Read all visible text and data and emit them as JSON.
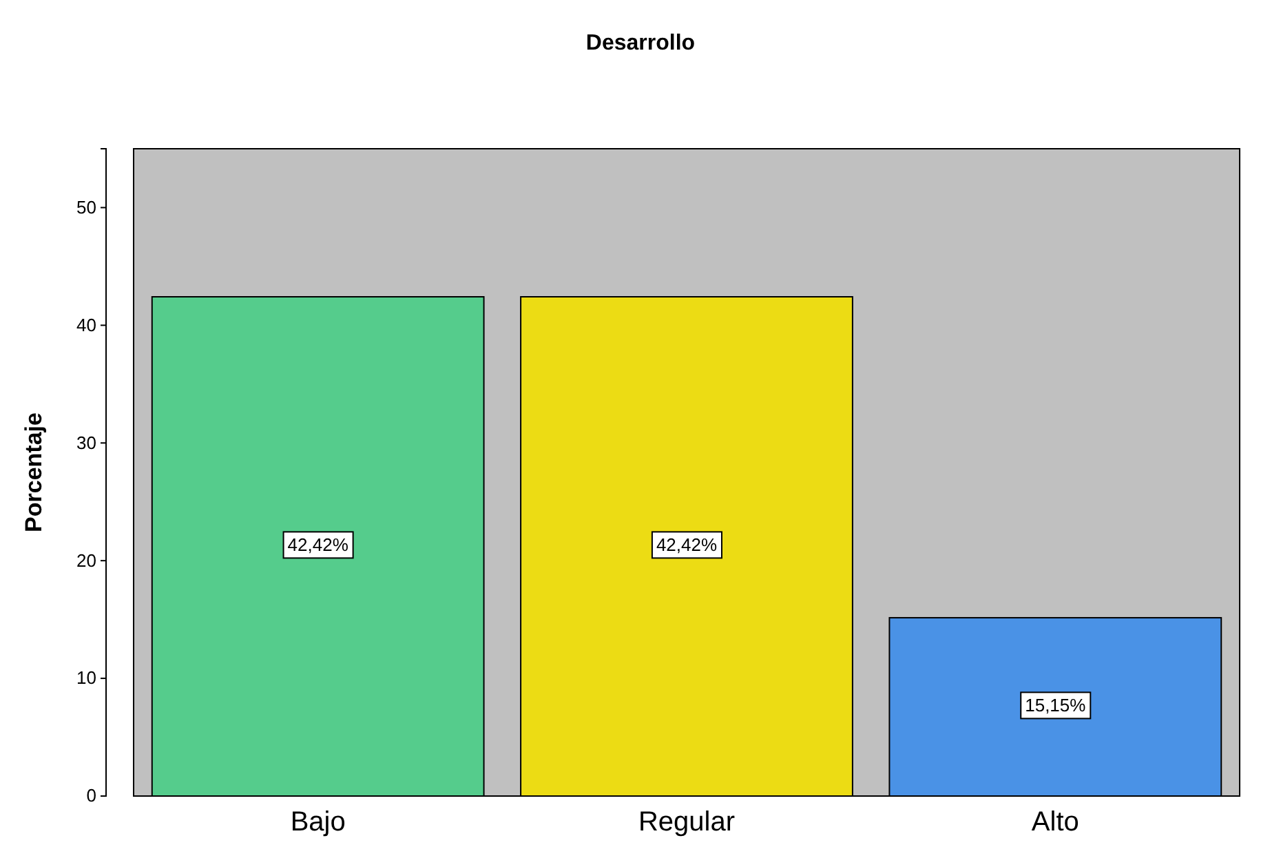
{
  "chart_data": {
    "type": "bar",
    "title": "Desarrollo",
    "ylabel": "Porcentaje",
    "categories": [
      "Bajo",
      "Regular",
      "Alto"
    ],
    "values": [
      42.42,
      42.42,
      15.15
    ],
    "colors": [
      "#55cc8c",
      "#ecdc14",
      "#4a92e6"
    ],
    "value_labels": [
      "42,42%",
      "42,42%",
      "15,15%"
    ],
    "ylim": [
      0,
      55
    ],
    "yticks": [
      0,
      10,
      20,
      30,
      40,
      50
    ],
    "grid": false
  }
}
